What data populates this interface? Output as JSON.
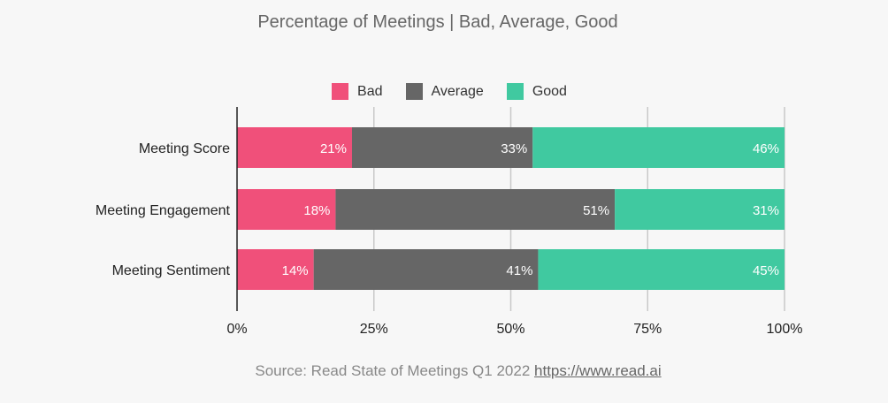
{
  "chart_data": {
    "type": "bar",
    "orientation": "horizontal",
    "stacked": true,
    "title": "Percentage of Meetings | Bad, Average, Good",
    "categories": [
      "Meeting Score",
      "Meeting Engagement",
      "Meeting Sentiment"
    ],
    "series": [
      {
        "name": "Bad",
        "color": "#f0507a",
        "values": [
          21,
          18,
          14
        ],
        "labels": [
          "21%",
          "18%",
          "14%"
        ]
      },
      {
        "name": "Average",
        "color": "#666666",
        "values": [
          33,
          51,
          41
        ],
        "labels": [
          "33%",
          "51%",
          "41%"
        ]
      },
      {
        "name": "Good",
        "color": "#40c9a0",
        "values": [
          46,
          31,
          45
        ],
        "labels": [
          "46%",
          "31%",
          "45%"
        ]
      }
    ],
    "xlim": [
      0,
      100
    ],
    "xticks": [
      0,
      25,
      50,
      75,
      100
    ],
    "xtick_labels": [
      "0%",
      "25%",
      "50%",
      "75%",
      "100%"
    ],
    "grid": true,
    "legend_position": "top-center"
  },
  "footer": {
    "source_text": "Source: Read State of Meetings Q1 2022",
    "source_link": "https://www.read.ai"
  }
}
